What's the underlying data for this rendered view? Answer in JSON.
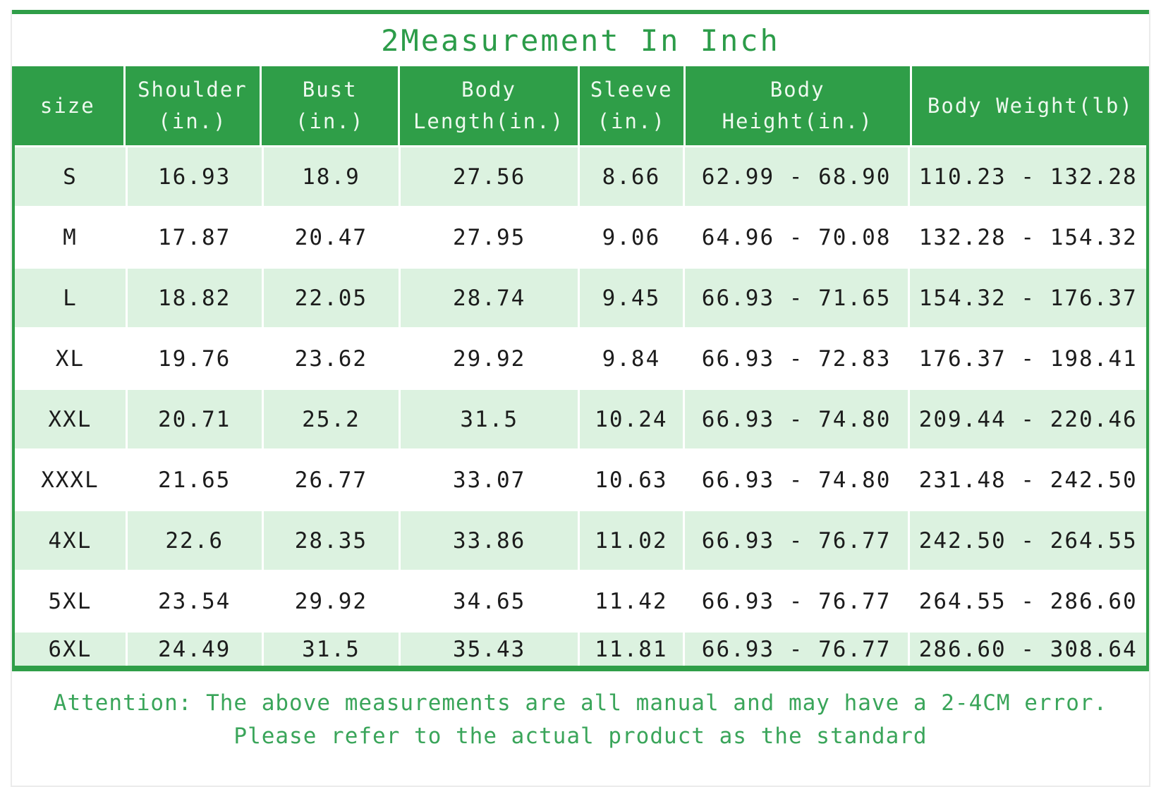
{
  "title": "2Measurement In Inch",
  "chart_data": {
    "type": "table",
    "title": "2Measurement In Inch",
    "columns": [
      "size",
      "Shoulder\n(in.)",
      "Bust\n(in.)",
      "Body\nLength(in.)",
      "Sleeve\n(in.)",
      "Body\nHeight(in.)",
      "Body Weight(lb)"
    ],
    "rows": [
      [
        "S",
        "16.93",
        "18.9",
        "27.56",
        "8.66",
        "62.99 - 68.90",
        "110.23 - 132.28"
      ],
      [
        "M",
        "17.87",
        "20.47",
        "27.95",
        "9.06",
        "64.96 - 70.08",
        "132.28 - 154.32"
      ],
      [
        "L",
        "18.82",
        "22.05",
        "28.74",
        "9.45",
        "66.93 - 71.65",
        "154.32 - 176.37"
      ],
      [
        "XL",
        "19.76",
        "23.62",
        "29.92",
        "9.84",
        "66.93 - 72.83",
        "176.37 - 198.41"
      ],
      [
        "XXL",
        "20.71",
        "25.2",
        "31.5",
        "10.24",
        "66.93 - 74.80",
        "209.44 - 220.46"
      ],
      [
        "XXXL",
        "21.65",
        "26.77",
        "33.07",
        "10.63",
        "66.93 - 74.80",
        "231.48 - 242.50"
      ],
      [
        "4XL",
        "22.6",
        "28.35",
        "33.86",
        "11.02",
        "66.93 - 76.77",
        "242.50 - 264.55"
      ],
      [
        "5XL",
        "23.54",
        "29.92",
        "34.65",
        "11.42",
        "66.93 - 76.77",
        "264.55 - 286.60"
      ],
      [
        "6XL",
        "24.49",
        "31.5",
        "35.43",
        "11.81",
        "66.93 - 76.77",
        "286.60 - 308.64"
      ]
    ]
  },
  "note": {
    "line1": "Attention: The above measurements are all manual and may have a 2-4CM error.",
    "line2": "Please refer to the actual product as the standard"
  },
  "colors": {
    "header_green": "#2f9e48",
    "row_light_green": "#dcf2e0",
    "title_green": "#2c9c49",
    "note_green": "#3aa55a",
    "cell_text": "#1c1c1c"
  }
}
